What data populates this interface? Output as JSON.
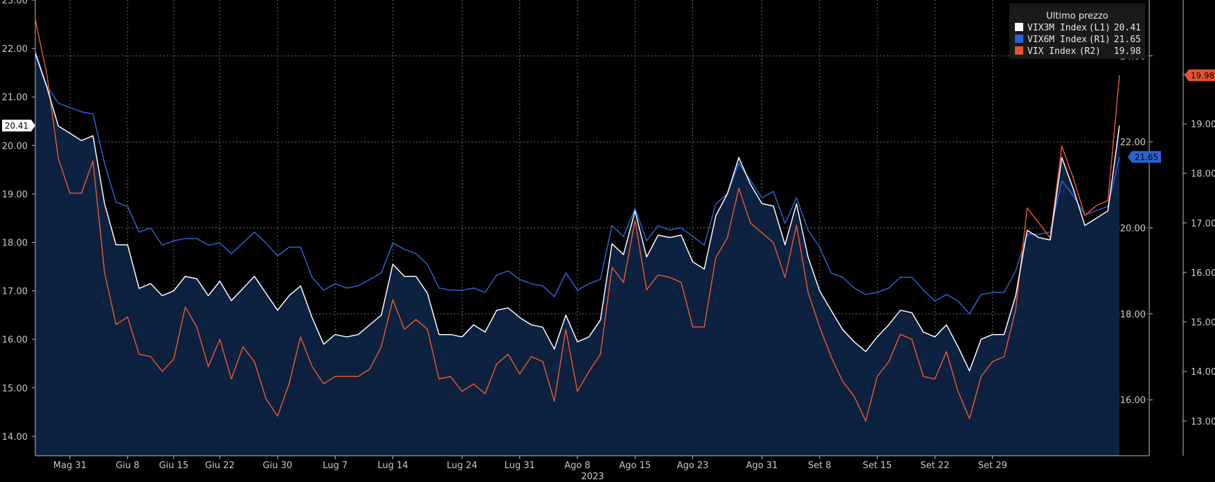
{
  "colors": {
    "background": "#000000",
    "grid": "#6a6a6a",
    "vix3m": "#ffffff",
    "vix6m": "#2a63d6",
    "vix": "#e8552e",
    "area_fill": "#0c2240"
  },
  "chart_data": {
    "type": "line",
    "grid": true,
    "legend_position": "top-right",
    "legend_title": "Ultimo prezzo",
    "year_label": "2023",
    "x_tick_labels": [
      "Mag 31",
      "Giu 8",
      "Giu 15",
      "Giu 22",
      "Giu 30",
      "Lug 7",
      "Lug 14",
      "Lug 24",
      "Lug 31",
      "Ago 8",
      "Ago 15",
      "Ago 23",
      "Ago 31",
      "Set 8",
      "Set 15",
      "Set 22",
      "Set 29"
    ],
    "x_tick_indices": [
      3,
      8,
      12,
      16,
      21,
      26,
      31,
      37,
      42,
      47,
      52,
      57,
      63,
      68,
      73,
      78,
      83
    ],
    "axes": {
      "L1": {
        "position": "left",
        "min": 13.6,
        "max": 23.0,
        "ticks": [
          "14.00",
          "15.00",
          "16.00",
          "17.00",
          "18.00",
          "19.00",
          "20.00",
          "21.00",
          "22.00",
          "23.00"
        ]
      },
      "R1": {
        "position": "right-inner",
        "min": 14.7,
        "max": 25.3,
        "ticks": [
          "16.00",
          "18.00",
          "20.00",
          "22.00",
          "24.00"
        ]
      },
      "R2": {
        "position": "right-outer",
        "min": 12.3,
        "max": 21.5,
        "ticks": [
          "13.00",
          "14.00",
          "15.00",
          "16.00",
          "17.00",
          "18.00",
          "19.00",
          "20.00"
        ]
      }
    },
    "series": [
      {
        "name": "VIX3M Index",
        "axis_label": "(L1)",
        "last": "20.41",
        "axis": "L1",
        "fill": true,
        "values": [
          21.9,
          21.2,
          20.4,
          20.25,
          20.1,
          20.2,
          18.8,
          17.95,
          17.95,
          17.05,
          17.15,
          16.9,
          17.0,
          17.3,
          17.25,
          16.9,
          17.2,
          16.8,
          17.05,
          17.3,
          16.95,
          16.6,
          16.9,
          17.1,
          16.45,
          15.9,
          16.1,
          16.05,
          16.1,
          16.3,
          16.5,
          17.55,
          17.3,
          17.3,
          16.95,
          16.1,
          16.1,
          16.05,
          16.3,
          16.15,
          16.6,
          16.65,
          16.45,
          16.3,
          16.25,
          15.8,
          16.5,
          15.95,
          16.05,
          16.4,
          17.97,
          17.75,
          18.65,
          17.7,
          18.15,
          18.1,
          18.15,
          17.6,
          17.45,
          18.55,
          19.0,
          19.75,
          19.2,
          18.8,
          18.75,
          17.95,
          18.8,
          17.7,
          17.0,
          16.6,
          16.2,
          15.95,
          15.75,
          16.05,
          16.3,
          16.6,
          16.55,
          16.15,
          16.05,
          16.3,
          15.85,
          15.35,
          16.0,
          16.1,
          16.1,
          16.9,
          18.25,
          18.1,
          18.05,
          19.75,
          19.1,
          18.35,
          18.5,
          18.65,
          20.41
        ]
      },
      {
        "name": "VIX6M Index",
        "axis_label": "(R1)",
        "last": "21.65",
        "axis": "R1",
        "fill": false,
        "values": [
          24.1,
          23.3,
          22.9,
          22.8,
          22.7,
          22.65,
          21.5,
          20.6,
          20.5,
          19.9,
          20.0,
          19.6,
          19.7,
          19.75,
          19.75,
          19.6,
          19.65,
          19.4,
          19.65,
          19.9,
          19.65,
          19.35,
          19.55,
          19.55,
          18.85,
          18.55,
          18.7,
          18.6,
          18.65,
          18.8,
          18.95,
          19.65,
          19.5,
          19.4,
          19.15,
          18.6,
          18.55,
          18.55,
          18.6,
          18.5,
          18.9,
          19.0,
          18.8,
          18.7,
          18.65,
          18.4,
          18.95,
          18.55,
          18.7,
          18.8,
          20.05,
          19.8,
          20.45,
          19.7,
          20.05,
          19.95,
          20.0,
          19.8,
          19.6,
          20.55,
          20.8,
          21.5,
          21.1,
          20.7,
          20.85,
          20.1,
          20.7,
          19.95,
          19.55,
          18.95,
          18.85,
          18.6,
          18.45,
          18.5,
          18.6,
          18.85,
          18.85,
          18.55,
          18.3,
          18.45,
          18.3,
          18.0,
          18.45,
          18.5,
          18.5,
          19.0,
          19.85,
          19.85,
          19.9,
          21.1,
          20.75,
          20.3,
          20.4,
          20.5,
          21.65
        ]
      },
      {
        "name": "VIX Index",
        "axis_label": "(R2)",
        "last": "19.98",
        "axis": "R2",
        "fill": false,
        "values": [
          21.1,
          20.0,
          18.3,
          17.6,
          17.6,
          18.25,
          16.0,
          14.95,
          15.1,
          14.35,
          14.3,
          14.0,
          14.25,
          15.3,
          14.9,
          14.1,
          14.65,
          13.85,
          14.5,
          14.2,
          13.45,
          13.1,
          13.75,
          14.7,
          14.1,
          13.75,
          13.9,
          13.9,
          13.9,
          14.05,
          14.5,
          15.45,
          14.85,
          15.05,
          14.85,
          13.85,
          13.9,
          13.6,
          13.75,
          13.55,
          14.15,
          14.35,
          13.95,
          14.3,
          14.2,
          13.4,
          14.85,
          13.6,
          14.0,
          14.35,
          16.1,
          15.8,
          17.05,
          15.65,
          15.95,
          15.9,
          15.8,
          14.9,
          14.9,
          16.3,
          16.7,
          17.7,
          17.0,
          16.8,
          16.6,
          15.9,
          16.95,
          15.6,
          14.9,
          14.3,
          13.8,
          13.5,
          13.0,
          13.9,
          14.2,
          14.75,
          14.65,
          13.9,
          13.85,
          14.4,
          13.6,
          13.05,
          13.9,
          14.2,
          14.3,
          15.25,
          17.3,
          17.0,
          16.7,
          18.55,
          17.9,
          17.15,
          17.35,
          17.45,
          19.98
        ]
      }
    ]
  }
}
